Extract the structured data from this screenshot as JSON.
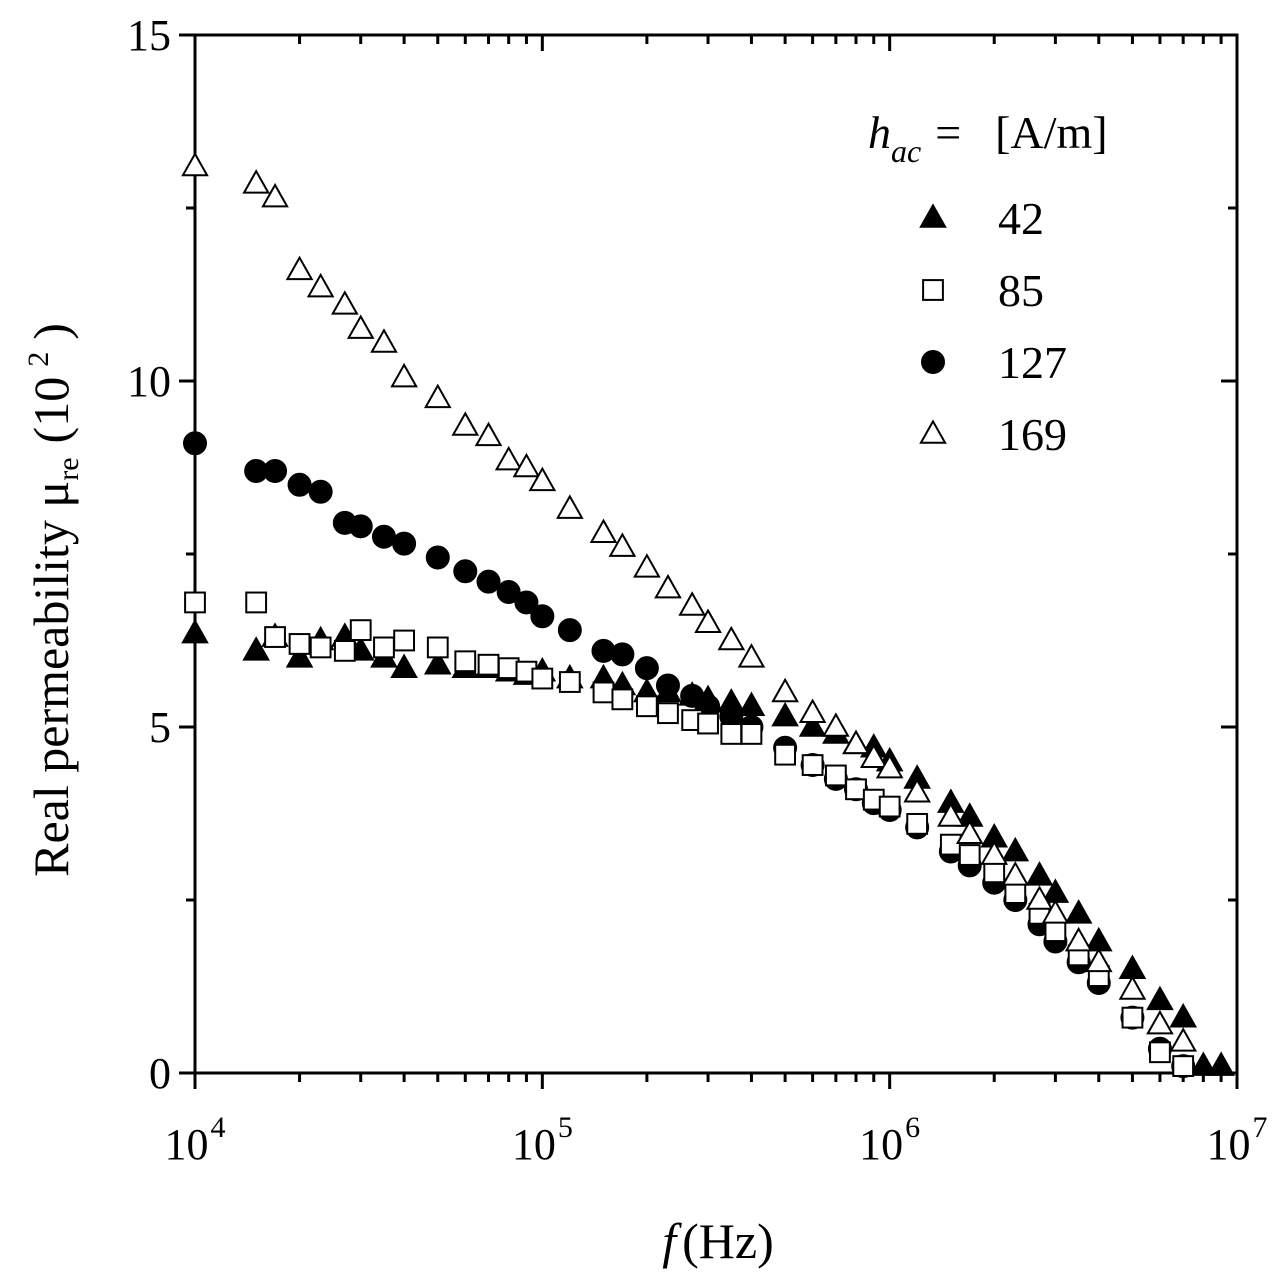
{
  "chart_data": {
    "type": "scatter",
    "x_scale": "log",
    "xlim": [
      10000,
      10000000
    ],
    "ylim": [
      0,
      15
    ],
    "xlabel": {
      "italic": "f",
      "text": "(Hz)"
    },
    "ylabel": {
      "main": "Real permeability μ",
      "sub": "re",
      "paren_open": "(10",
      "sup": "2",
      "paren_close": ")"
    },
    "x_ticks": [
      {
        "value": 10000,
        "base": "10",
        "exp": "4"
      },
      {
        "value": 100000,
        "base": "10",
        "exp": "5"
      },
      {
        "value": 1000000,
        "base": "10",
        "exp": "6"
      },
      {
        "value": 10000000,
        "base": "10",
        "exp": "7"
      }
    ],
    "y_ticks": [
      {
        "value": 0,
        "label": "0"
      },
      {
        "value": 5,
        "label": "5"
      },
      {
        "value": 10,
        "label": "10"
      },
      {
        "value": 15,
        "label": "15"
      }
    ],
    "y_minor_ticks": [
      2.5,
      7.5,
      12.5
    ],
    "legend": {
      "title_var": "h",
      "title_sub": "ac",
      "title_eq": "=",
      "title_unit": "[A/m]",
      "position": "top-right"
    },
    "series": [
      {
        "name": "42",
        "marker": "triangle-filled",
        "points": [
          [
            10000,
            6.35
          ],
          [
            15000,
            6.1
          ],
          [
            17000,
            6.3
          ],
          [
            20000,
            6.0
          ],
          [
            23000,
            6.25
          ],
          [
            27000,
            6.3
          ],
          [
            30000,
            6.1
          ],
          [
            35000,
            6.0
          ],
          [
            40000,
            5.85
          ],
          [
            50000,
            5.9
          ],
          [
            60000,
            5.85
          ],
          [
            70000,
            5.85
          ],
          [
            80000,
            5.8
          ],
          [
            90000,
            5.75
          ],
          [
            100000,
            5.8
          ],
          [
            120000,
            5.7
          ],
          [
            150000,
            5.7
          ],
          [
            170000,
            5.6
          ],
          [
            200000,
            5.5
          ],
          [
            230000,
            5.5
          ],
          [
            270000,
            5.45
          ],
          [
            300000,
            5.4
          ],
          [
            350000,
            5.35
          ],
          [
            400000,
            5.3
          ],
          [
            500000,
            5.15
          ],
          [
            600000,
            5.0
          ],
          [
            700000,
            4.9
          ],
          [
            800000,
            4.75
          ],
          [
            900000,
            4.7
          ],
          [
            1000000,
            4.5
          ],
          [
            1200000,
            4.25
          ],
          [
            1500000,
            3.9
          ],
          [
            1700000,
            3.7
          ],
          [
            2000000,
            3.4
          ],
          [
            2300000,
            3.2
          ],
          [
            2700000,
            2.85
          ],
          [
            3000000,
            2.6
          ],
          [
            3500000,
            2.3
          ],
          [
            4000000,
            1.9
          ],
          [
            5000000,
            1.5
          ],
          [
            6000000,
            1.05
          ],
          [
            7000000,
            0.8
          ],
          [
            8000000,
            0.1
          ],
          [
            9000000,
            0.1
          ]
        ]
      },
      {
        "name": "85",
        "marker": "square-open",
        "points": [
          [
            10000,
            6.8
          ],
          [
            15000,
            6.8
          ],
          [
            17000,
            6.3
          ],
          [
            20000,
            6.2
          ],
          [
            23000,
            6.15
          ],
          [
            27000,
            6.1
          ],
          [
            30000,
            6.4
          ],
          [
            35000,
            6.15
          ],
          [
            40000,
            6.25
          ],
          [
            50000,
            6.15
          ],
          [
            60000,
            5.95
          ],
          [
            70000,
            5.9
          ],
          [
            80000,
            5.85
          ],
          [
            90000,
            5.8
          ],
          [
            100000,
            5.7
          ],
          [
            120000,
            5.65
          ],
          [
            150000,
            5.5
          ],
          [
            170000,
            5.4
          ],
          [
            200000,
            5.3
          ],
          [
            230000,
            5.2
          ],
          [
            270000,
            5.1
          ],
          [
            300000,
            5.05
          ],
          [
            350000,
            4.9
          ],
          [
            400000,
            4.9
          ],
          [
            500000,
            4.6
          ],
          [
            600000,
            4.45
          ],
          [
            700000,
            4.3
          ],
          [
            800000,
            4.1
          ],
          [
            900000,
            3.95
          ],
          [
            1000000,
            3.85
          ],
          [
            1200000,
            3.6
          ],
          [
            1500000,
            3.3
          ],
          [
            1700000,
            3.15
          ],
          [
            2000000,
            2.9
          ],
          [
            2300000,
            2.6
          ],
          [
            2700000,
            2.3
          ],
          [
            3000000,
            2.05
          ],
          [
            3500000,
            1.7
          ],
          [
            4000000,
            1.4
          ],
          [
            5000000,
            0.8
          ],
          [
            6000000,
            0.3
          ],
          [
            7000000,
            0.1
          ]
        ]
      },
      {
        "name": "127",
        "marker": "circle-filled",
        "points": [
          [
            10000,
            9.1
          ],
          [
            15000,
            8.7
          ],
          [
            17000,
            8.7
          ],
          [
            20000,
            8.5
          ],
          [
            23000,
            8.4
          ],
          [
            27000,
            7.95
          ],
          [
            30000,
            7.9
          ],
          [
            35000,
            7.75
          ],
          [
            40000,
            7.65
          ],
          [
            50000,
            7.45
          ],
          [
            60000,
            7.25
          ],
          [
            70000,
            7.1
          ],
          [
            80000,
            6.95
          ],
          [
            90000,
            6.8
          ],
          [
            100000,
            6.6
          ],
          [
            120000,
            6.4
          ],
          [
            150000,
            6.1
          ],
          [
            170000,
            6.05
          ],
          [
            200000,
            5.85
          ],
          [
            230000,
            5.6
          ],
          [
            270000,
            5.45
          ],
          [
            300000,
            5.3
          ],
          [
            350000,
            5.15
          ],
          [
            400000,
            5.0
          ],
          [
            500000,
            4.7
          ],
          [
            600000,
            4.45
          ],
          [
            700000,
            4.25
          ],
          [
            800000,
            4.1
          ],
          [
            900000,
            3.9
          ],
          [
            1000000,
            3.8
          ],
          [
            1200000,
            3.55
          ],
          [
            1500000,
            3.2
          ],
          [
            1700000,
            3.0
          ],
          [
            2000000,
            2.75
          ],
          [
            2300000,
            2.5
          ],
          [
            2700000,
            2.15
          ],
          [
            3000000,
            1.9
          ],
          [
            3500000,
            1.6
          ],
          [
            4000000,
            1.3
          ],
          [
            5000000,
            0.8
          ],
          [
            6000000,
            0.35
          ],
          [
            7000000,
            0.1
          ]
        ]
      },
      {
        "name": "169",
        "marker": "triangle-open",
        "points": [
          [
            10000,
            13.1
          ],
          [
            15000,
            12.85
          ],
          [
            17000,
            12.65
          ],
          [
            20000,
            11.6
          ],
          [
            23000,
            11.35
          ],
          [
            27000,
            11.1
          ],
          [
            30000,
            10.75
          ],
          [
            35000,
            10.55
          ],
          [
            40000,
            10.05
          ],
          [
            50000,
            9.75
          ],
          [
            60000,
            9.35
          ],
          [
            70000,
            9.2
          ],
          [
            80000,
            8.85
          ],
          [
            90000,
            8.75
          ],
          [
            100000,
            8.55
          ],
          [
            120000,
            8.15
          ],
          [
            150000,
            7.8
          ],
          [
            170000,
            7.6
          ],
          [
            200000,
            7.3
          ],
          [
            230000,
            7.0
          ],
          [
            270000,
            6.75
          ],
          [
            300000,
            6.5
          ],
          [
            350000,
            6.25
          ],
          [
            400000,
            6.0
          ],
          [
            500000,
            5.5
          ],
          [
            600000,
            5.2
          ],
          [
            700000,
            5.0
          ],
          [
            800000,
            4.75
          ],
          [
            900000,
            4.55
          ],
          [
            1000000,
            4.4
          ],
          [
            1200000,
            4.05
          ],
          [
            1500000,
            3.7
          ],
          [
            1700000,
            3.45
          ],
          [
            2000000,
            3.15
          ],
          [
            2300000,
            2.85
          ],
          [
            2700000,
            2.5
          ],
          [
            3000000,
            2.3
          ],
          [
            3500000,
            1.9
          ],
          [
            4000000,
            1.6
          ],
          [
            5000000,
            1.2
          ],
          [
            6000000,
            0.7
          ],
          [
            7000000,
            0.45
          ]
        ]
      }
    ]
  }
}
